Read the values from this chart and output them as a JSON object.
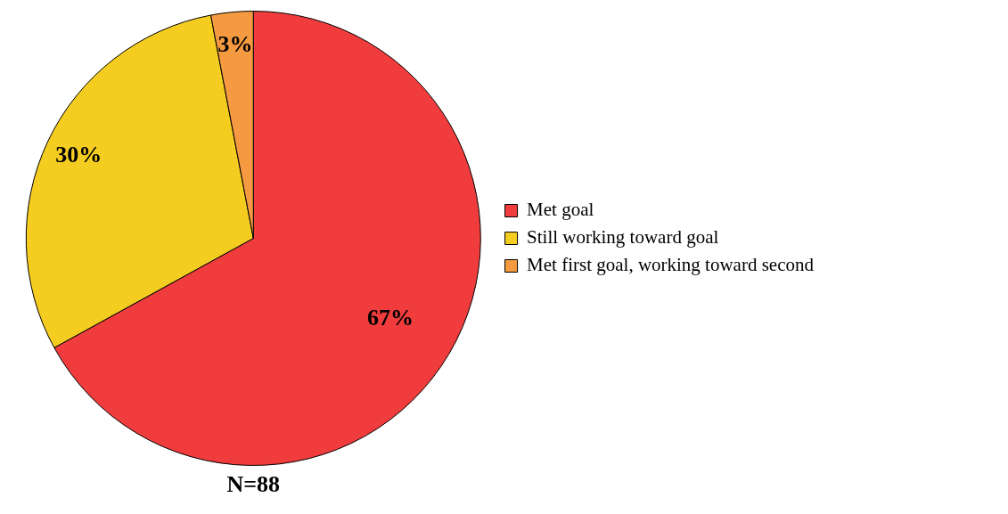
{
  "chart_data": {
    "type": "pie",
    "categories": [
      "Met goal",
      "Still working toward goal",
      "Met first goal, working toward second"
    ],
    "values": [
      67,
      30,
      3
    ],
    "colors": [
      "#f03c3c",
      "#f5cc20",
      "#f59a40"
    ],
    "value_labels": [
      "67%",
      "30%",
      "3%"
    ],
    "legend": "right",
    "annotations": [
      "N=88"
    ]
  }
}
